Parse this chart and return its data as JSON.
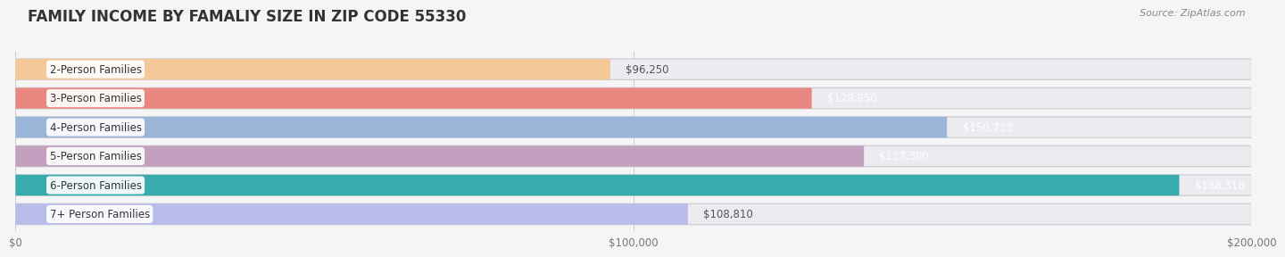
{
  "title": "FAMILY INCOME BY FAMALIY SIZE IN ZIP CODE 55330",
  "source": "Source: ZipAtlas.com",
  "categories": [
    "2-Person Families",
    "3-Person Families",
    "4-Person Families",
    "5-Person Families",
    "6-Person Families",
    "7+ Person Families"
  ],
  "values": [
    96250,
    128850,
    150733,
    137300,
    188318,
    108810
  ],
  "labels": [
    "$96,250",
    "$128,850",
    "$150,733",
    "$137,300",
    "$188,318",
    "$108,810"
  ],
  "bar_colors": [
    "#f5c89a",
    "#e88880",
    "#9ab5d8",
    "#c4a0c0",
    "#38acac",
    "#b8bce8"
  ],
  "label_text_colors": [
    "#555555",
    "#ffffff",
    "#ffffff",
    "#ffffff",
    "#ffffff",
    "#555555"
  ],
  "background_color": "#f5f5f5",
  "bar_bg_color": "#e0e0e8",
  "xlim": [
    0,
    200000
  ],
  "xticks": [
    0,
    100000,
    200000
  ],
  "xticklabels": [
    "$0",
    "$100,000",
    "$200,000"
  ],
  "bar_height": 0.72,
  "title_fontsize": 12,
  "source_fontsize": 8,
  "label_fontsize": 8.5,
  "cat_fontsize": 8.5
}
